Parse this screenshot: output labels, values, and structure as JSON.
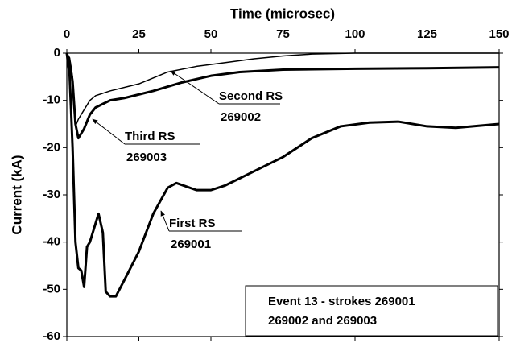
{
  "chart_data": {
    "type": "line",
    "x_label": "Time (microsec)",
    "y_label": "Current (kA)",
    "xlim": [
      0,
      150
    ],
    "xticks": [
      0,
      25,
      50,
      75,
      100,
      125,
      150
    ],
    "ylim": [
      -60,
      0
    ],
    "yticks": [
      0,
      -10,
      -20,
      -30,
      -40,
      -50,
      -60
    ],
    "box_text": [
      "Event 13 - strokes 269001",
      "269002 and 269003"
    ],
    "series": [
      {
        "name": "First RS",
        "stroke": "269001",
        "color": "#000000",
        "x": [
          0,
          1,
          2,
          3,
          4,
          5,
          6,
          7,
          8,
          10,
          11,
          12.5,
          13.5,
          15,
          17,
          20,
          25,
          30,
          35,
          38,
          45,
          50,
          55,
          65,
          75,
          85,
          95,
          105,
          115,
          125,
          135,
          150
        ],
        "values": [
          0,
          -5,
          -20,
          -40,
          -45.5,
          -46,
          -49.5,
          -41,
          -40,
          -36,
          -34,
          -38,
          -50.5,
          -51.5,
          -51.5,
          -48,
          -42,
          -34,
          -28.5,
          -27.5,
          -29,
          -29,
          -28,
          -25,
          -22,
          -18,
          -15.5,
          -14.7,
          -14.5,
          -15.5,
          -15.8,
          -15
        ]
      },
      {
        "name": "Second RS",
        "stroke": "269002",
        "color": "#000000",
        "x": [
          0,
          1,
          2,
          3,
          4,
          6,
          8,
          10,
          15,
          25,
          35,
          45,
          55,
          65,
          75,
          85,
          100,
          150
        ],
        "values": [
          0,
          -1,
          -5,
          -15.5,
          -14,
          -12,
          -10,
          -9,
          -8,
          -6.5,
          -4,
          -2.8,
          -2,
          -1.2,
          -0.6,
          -0.2,
          0,
          0
        ]
      },
      {
        "name": "Third RS",
        "stroke": "269003",
        "color": "#000000",
        "x": [
          0,
          1,
          2,
          3,
          4,
          6,
          8,
          10,
          15,
          20,
          30,
          40,
          50,
          60,
          75,
          100,
          125,
          150
        ],
        "values": [
          0,
          -2,
          -6,
          -15,
          -18,
          -16,
          -13,
          -11.5,
          -10,
          -9.5,
          -8,
          -6.2,
          -4.8,
          -4,
          -3.5,
          -3.3,
          -3.2,
          -3
        ]
      }
    ]
  }
}
